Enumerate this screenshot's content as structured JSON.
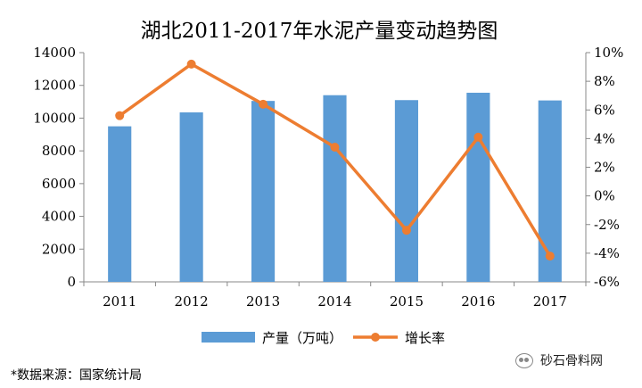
{
  "chart_data": {
    "type": "bar+line",
    "title": "湖北2011-2017年水泥产量变动趋势图",
    "categories": [
      "2011",
      "2012",
      "2013",
      "2014",
      "2015",
      "2016",
      "2017"
    ],
    "series": [
      {
        "name": "产量（万吨）",
        "type": "bar",
        "axis": "left",
        "values": [
          9500,
          10350,
          11050,
          11400,
          11100,
          11550,
          11080
        ],
        "color": "#5B9BD5"
      },
      {
        "name": "增长率",
        "type": "line",
        "axis": "right",
        "values": [
          5.6,
          9.2,
          6.4,
          3.4,
          -2.4,
          4.1,
          -4.2
        ],
        "color": "#ED7D31"
      }
    ],
    "y_left": {
      "min": 0,
      "max": 14000,
      "step": 2000,
      "tick_labels": [
        "0",
        "2000",
        "4000",
        "6000",
        "8000",
        "10000",
        "12000",
        "14000"
      ]
    },
    "y_right": {
      "min": -6,
      "max": 10,
      "step": 2,
      "tick_labels": [
        "-6%",
        "-4%",
        "-2%",
        "0%",
        "2%",
        "4%",
        "6%",
        "8%",
        "10%"
      ]
    },
    "grid": false,
    "legend_position": "bottom"
  },
  "footer": {
    "source": "*数据来源：国家统计局",
    "brand": "砂石骨料网"
  }
}
